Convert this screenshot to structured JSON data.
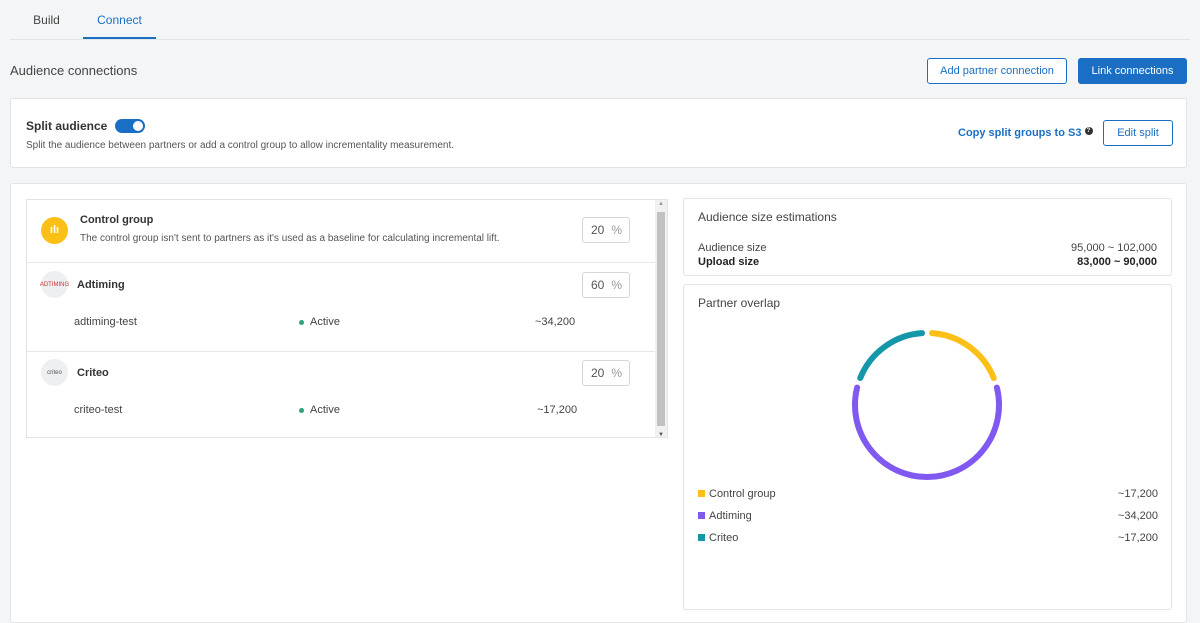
{
  "tabs": [
    {
      "label": "Build"
    },
    {
      "label": "Connect",
      "active": true
    }
  ],
  "header": {
    "title": "Audience connections",
    "add_partner": "Add partner connection",
    "link": "Link connections"
  },
  "split": {
    "label": "Split audience",
    "enabled": true,
    "description": "Split the audience between partners or add a control group to allow incrementality measurement.",
    "copy_link": "Copy split groups to S3",
    "edit": "Edit split"
  },
  "control": {
    "name": "Control group",
    "description": "The control group isn't sent to partners as it's used as a baseline for calculating incremental lift.",
    "percent": "20",
    "unit": "%"
  },
  "partners": [
    {
      "name": "Adtiming",
      "logo_text": "ADTIMING",
      "percent": "60",
      "unit": "%",
      "connection": "adtiming-test",
      "status": "Active",
      "size": "~34,200"
    },
    {
      "name": "Criteo",
      "logo_text": "criteo",
      "percent": "20",
      "unit": "%",
      "connection": "criteo-test",
      "status": "Active",
      "size": "~17,200"
    }
  ],
  "estimations": {
    "title": "Audience size estimations",
    "audience_label": "Audience size",
    "audience_value": "95,000 ~ 102,000",
    "upload_label": "Upload size",
    "upload_value": "83,000 ~ 90,000"
  },
  "overlap": {
    "title": "Partner overlap",
    "legend": [
      {
        "name": "Control group",
        "value": "~17,200",
        "color": "#fbbf15",
        "share": 20
      },
      {
        "name": "Adtiming",
        "value": "~34,200",
        "color": "#8059f0",
        "share": 60
      },
      {
        "name": "Criteo",
        "value": "~17,200",
        "color": "#1497a8",
        "share": 20
      }
    ]
  }
}
